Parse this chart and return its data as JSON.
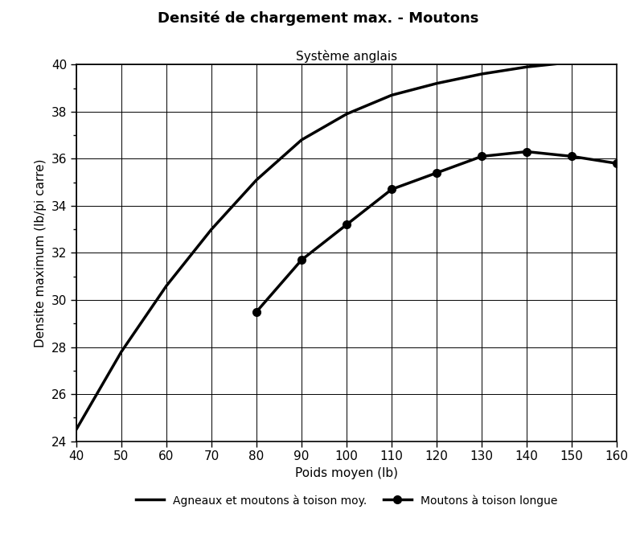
{
  "title_line1": "Densité de chargement max. - Moutons",
  "title_line2": "Système anglais",
  "xlabel": "Poids moyen (lb)",
  "ylabel": "Densite maximum (lb/pi carre)",
  "xlim": [
    40,
    160
  ],
  "ylim": [
    24,
    40
  ],
  "xticks_major": [
    40,
    50,
    60,
    70,
    80,
    90,
    100,
    110,
    120,
    130,
    140,
    150,
    160
  ],
  "yticks_major": [
    24,
    26,
    28,
    30,
    32,
    34,
    36,
    38,
    40
  ],
  "yticks_minor": [
    24,
    25,
    26,
    27,
    28,
    29,
    30,
    31,
    32,
    33,
    34,
    35,
    36,
    37,
    38,
    39,
    40
  ],
  "line1_label": "Agneaux et moutons à toison moy.",
  "line1_x": [
    40,
    50,
    60,
    70,
    80,
    90,
    100,
    110,
    120,
    130,
    140,
    150,
    160
  ],
  "line1_y": [
    24.5,
    27.8,
    30.6,
    33.0,
    35.1,
    36.8,
    37.9,
    38.7,
    39.2,
    39.6,
    39.9,
    40.1,
    40.1
  ],
  "line2_label": "Moutons à toison longue",
  "line2_x": [
    80,
    90,
    100,
    110,
    120,
    130,
    140,
    150,
    160
  ],
  "line2_y": [
    29.5,
    31.7,
    33.2,
    34.7,
    35.4,
    36.1,
    36.3,
    36.1,
    35.8
  ],
  "line_color": "#000000",
  "marker": "o",
  "marker_size": 7,
  "linewidth": 2.5,
  "bg_color": "#ffffff",
  "grid_color": "#000000",
  "title_fontsize": 13,
  "subtitle_fontsize": 11,
  "label_fontsize": 11,
  "tick_fontsize": 11,
  "legend_fontsize": 10
}
